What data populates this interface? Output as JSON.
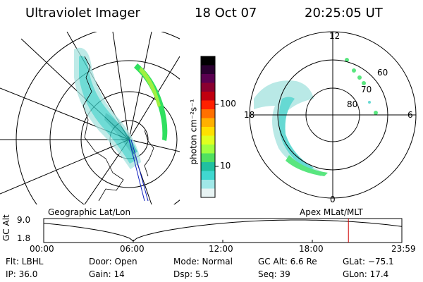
{
  "header": {
    "instrument": "Ultraviolet Imager",
    "date": "18 Oct 07",
    "time": "20:25:05 UT"
  },
  "colorbar": {
    "unit_label": "photon cm⁻²s⁻¹",
    "tick_labels": [
      "100",
      "10"
    ],
    "colors": [
      "#000000",
      "#2a0030",
      "#5a0050",
      "#8a0030",
      "#c00010",
      "#ff2000",
      "#ff7000",
      "#ffb000",
      "#ffe000",
      "#e0ff20",
      "#a0ff40",
      "#50e060",
      "#20c0a0",
      "#40d8d0",
      "#a0e8e8",
      "#e8f4f4"
    ]
  },
  "left_map": {
    "caption": "Geographic Lat/Lon",
    "aurora_color": "#40d0c8",
    "green_color": "#30e060"
  },
  "right_map": {
    "caption": "Apex MLat/MLT",
    "mlt_labels": {
      "top": "12",
      "left": "18",
      "right": "6",
      "bottom": "0"
    },
    "lat_labels": [
      "60",
      "70",
      "80"
    ]
  },
  "timeline": {
    "y_axis_label": "GC Alt",
    "y_ticks": [
      "9.0",
      "1.8"
    ],
    "x_ticks": [
      "00:00",
      "06:00",
      "12:00",
      "18:00",
      "23:59"
    ],
    "marker_time_hours": 20.42,
    "marker_color": "#d00000"
  },
  "info": {
    "flt": "Flt: LBHL",
    "ip": "IP: 36.0",
    "door": "Door: Open",
    "gain": "Gain: 14",
    "mode": "Mode: Normal",
    "dsp": "Dsp:      5.5",
    "gcalt": "GC Alt: 6.6 Re",
    "seq": "Seq: 39",
    "glat": "GLat:  −75.1",
    "glon": "GLon:   17.4"
  }
}
